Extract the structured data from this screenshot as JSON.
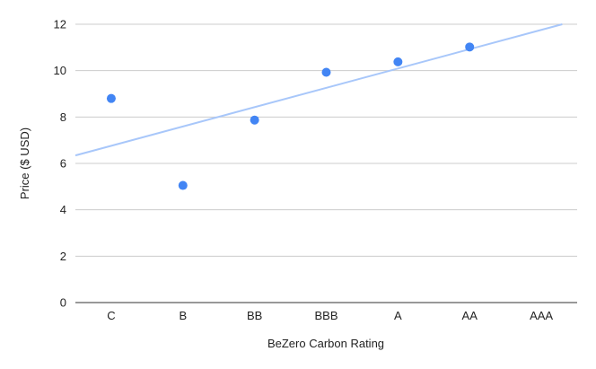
{
  "chart_data": {
    "type": "scatter",
    "title": "",
    "xlabel": "BeZero Carbon Rating",
    "ylabel": "Price ($ USD)",
    "categories": [
      "C",
      "B",
      "BB",
      "BBB",
      "A",
      "AA",
      "AAA"
    ],
    "series": [
      {
        "x": [
          "C",
          "B",
          "BB",
          "BBB",
          "A",
          "AA"
        ],
        "values": [
          8.8,
          5.05,
          7.87,
          9.93,
          10.38,
          11.02
        ],
        "color": "#4285f4"
      }
    ],
    "trendline": {
      "type": "linear",
      "color": "#a8c7fa"
    },
    "ylim": [
      0,
      12
    ],
    "yticks": [
      0,
      2,
      4,
      6,
      8,
      10,
      12
    ],
    "grid": true,
    "legend": "none"
  }
}
